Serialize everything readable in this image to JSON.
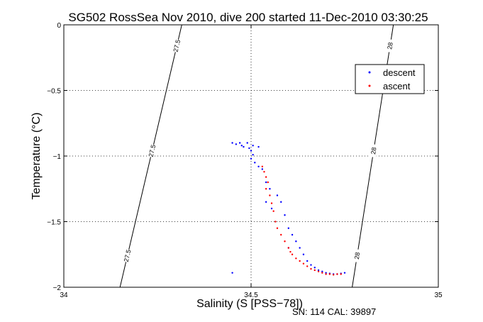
{
  "chart_data": {
    "type": "scatter",
    "title": "SG502 RossSea Nov 2010, dive 200 started 11-Dec-2010 03:30:25",
    "xlabel": "Salinity (S [PSS−78])",
    "ylabel": "Temperature (°C)",
    "xlim": [
      34,
      35
    ],
    "ylim": [
      -2,
      0
    ],
    "xticks": [
      34,
      34.5,
      35
    ],
    "xtick_labels": [
      "34",
      "34.5",
      "35"
    ],
    "yticks": [
      0,
      -0.5,
      -1,
      -1.5,
      -2
    ],
    "ytick_labels": [
      "0",
      "−0.5",
      "−1",
      "−1.5",
      "−2"
    ],
    "grid": true,
    "legend_position": "top-right",
    "footer": "SN: 114  CAL: 39897",
    "density_contours": [
      {
        "value": 27.5,
        "points": [
          [
            34.15,
            -2
          ],
          [
            34.315,
            0
          ]
        ],
        "labels": [
          "27.5",
          "27.5",
          "27.5"
        ]
      },
      {
        "value": 28,
        "points": [
          [
            34.77,
            -2
          ],
          [
            34.88,
            0
          ]
        ],
        "labels": [
          "28",
          "28",
          "28"
        ]
      }
    ],
    "series": [
      {
        "name": "descent",
        "color": "#0000ff",
        "points": [
          [
            34.45,
            -0.9
          ],
          [
            34.46,
            -0.91
          ],
          [
            34.47,
            -0.9
          ],
          [
            34.475,
            -0.92
          ],
          [
            34.48,
            -0.93
          ],
          [
            34.49,
            -0.9
          ],
          [
            34.495,
            -0.94
          ],
          [
            34.5,
            -0.96
          ],
          [
            34.505,
            -0.99
          ],
          [
            34.5,
            -1.02
          ],
          [
            34.51,
            -1.05
          ],
          [
            34.52,
            -1.08
          ],
          [
            34.505,
            -0.92
          ],
          [
            34.52,
            -0.93
          ],
          [
            34.53,
            -1.1
          ],
          [
            34.54,
            -1.2
          ],
          [
            34.55,
            -1.25
          ],
          [
            34.57,
            -1.3
          ],
          [
            34.58,
            -1.35
          ],
          [
            34.59,
            -1.45
          ],
          [
            34.6,
            -1.55
          ],
          [
            34.61,
            -1.6
          ],
          [
            34.62,
            -1.65
          ],
          [
            34.63,
            -1.7
          ],
          [
            34.64,
            -1.75
          ],
          [
            34.65,
            -1.8
          ],
          [
            34.66,
            -1.83
          ],
          [
            34.67,
            -1.85
          ],
          [
            34.68,
            -1.87
          ],
          [
            34.69,
            -1.88
          ],
          [
            34.7,
            -1.89
          ],
          [
            34.71,
            -1.895
          ],
          [
            34.72,
            -1.9
          ],
          [
            34.73,
            -1.9
          ],
          [
            34.74,
            -1.895
          ],
          [
            34.75,
            -1.89
          ],
          [
            34.45,
            -1.89
          ],
          [
            34.54,
            -1.35
          ],
          [
            34.555,
            -1.4
          ],
          [
            34.6,
            -1.7
          ]
        ]
      },
      {
        "name": "ascent",
        "color": "#ff0000",
        "points": [
          [
            34.53,
            -1.08
          ],
          [
            34.535,
            -1.12
          ],
          [
            34.54,
            -1.16
          ],
          [
            34.545,
            -1.2
          ],
          [
            34.54,
            -1.25
          ],
          [
            34.55,
            -1.3
          ],
          [
            34.555,
            -1.36
          ],
          [
            34.56,
            -1.42
          ],
          [
            34.565,
            -1.5
          ],
          [
            34.57,
            -1.55
          ],
          [
            34.58,
            -1.6
          ],
          [
            34.59,
            -1.65
          ],
          [
            34.6,
            -1.7
          ],
          [
            34.605,
            -1.73
          ],
          [
            34.61,
            -1.75
          ],
          [
            34.62,
            -1.78
          ],
          [
            34.63,
            -1.8
          ],
          [
            34.64,
            -1.82
          ],
          [
            34.65,
            -1.84
          ],
          [
            34.66,
            -1.86
          ],
          [
            34.67,
            -1.87
          ],
          [
            34.68,
            -1.88
          ],
          [
            34.69,
            -1.89
          ],
          [
            34.7,
            -1.9
          ],
          [
            34.71,
            -1.9
          ],
          [
            34.72,
            -1.905
          ],
          [
            34.73,
            -1.9
          ],
          [
            34.74,
            -1.9
          ]
        ]
      }
    ]
  }
}
